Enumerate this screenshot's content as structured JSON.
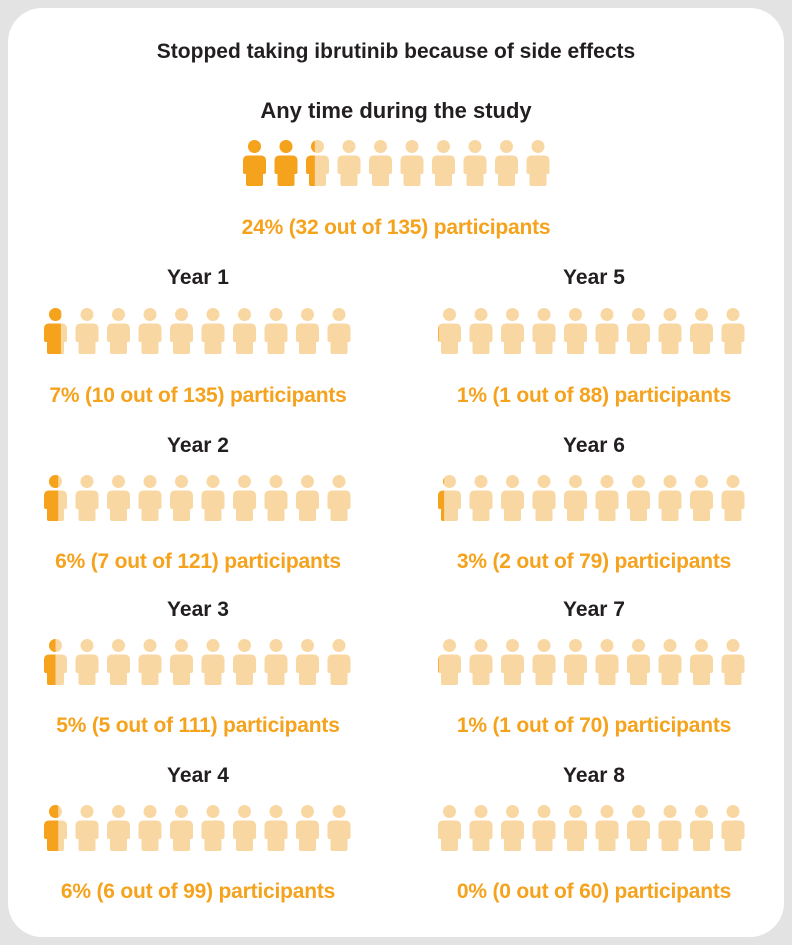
{
  "title": "Stopped taking ibrutinib because of side effects",
  "colors": {
    "accent": "#f5a21c",
    "light": "#f9d7a2",
    "text": "#231f20",
    "caption": "#f5a21c"
  },
  "chart_data": {
    "type": "icon-array",
    "icons_per_row": 10,
    "title": "Stopped taking ibrutinib because of side effects",
    "panels": [
      {
        "id": "any",
        "label": "Any time during the study",
        "percent": 24,
        "count": 32,
        "total": 135,
        "caption": "24% (32 out of 135) participants"
      },
      {
        "id": "y1",
        "label": "Year 1",
        "percent": 7,
        "count": 10,
        "total": 135,
        "caption": "7% (10 out of 135) participants"
      },
      {
        "id": "y2",
        "label": "Year 2",
        "percent": 6,
        "count": 7,
        "total": 121,
        "caption": "6% (7 out of 121) participants"
      },
      {
        "id": "y3",
        "label": "Year 3",
        "percent": 5,
        "count": 5,
        "total": 111,
        "caption": "5% (5 out of 111) participants"
      },
      {
        "id": "y4",
        "label": "Year 4",
        "percent": 6,
        "count": 6,
        "total": 99,
        "caption": "6% (6 out of 99) participants"
      },
      {
        "id": "y5",
        "label": "Year 5",
        "percent": 1,
        "count": 1,
        "total": 88,
        "caption": "1% (1 out of 88) participants"
      },
      {
        "id": "y6",
        "label": "Year 6",
        "percent": 3,
        "count": 2,
        "total": 79,
        "caption": "3% (2 out of 79) participants"
      },
      {
        "id": "y7",
        "label": "Year 7",
        "percent": 1,
        "count": 1,
        "total": 70,
        "caption": "1% (1 out of 70) participants"
      },
      {
        "id": "y8",
        "label": "Year 8",
        "percent": 0,
        "count": 0,
        "total": 60,
        "caption": "0% (0 out of 60) participants"
      }
    ]
  }
}
